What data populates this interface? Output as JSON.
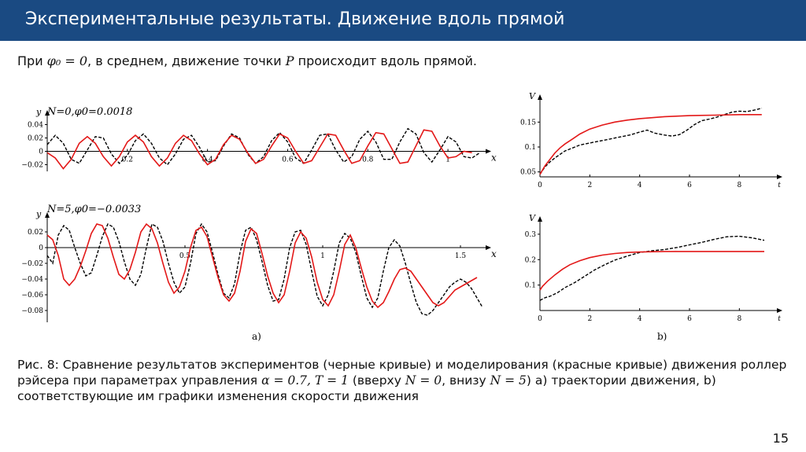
{
  "header": {
    "title": "Экспериментальные результаты. Движение вдоль прямой"
  },
  "intro": {
    "text_before": "При ",
    "formula": "φ₀ = 0",
    "text_middle": ", в среднем, движение точки ",
    "point": "P",
    "text_after": " происходит вдоль прямой."
  },
  "figure": {
    "label_a": "a)",
    "label_b": "b)",
    "plot_top_left_title": "N=0,φ0=0.0018",
    "plot_bottom_left_title": "N=5,φ0=−0.0033"
  },
  "caption": {
    "part1": "Рис. 8: Сравнение результатов экспериментов (черные кривые) и моделирования (красные кривые) движения роллер рэйсера при параметрах управления ",
    "math1": "α = 0.7, T = 1",
    "part2": " (вверху ",
    "math2": "N = 0",
    "part3": ", внизу ",
    "math3": "N = 5",
    "part4": ") a) траектории движения, b) соответствующие им графики изменения скорости движения"
  },
  "page_number": "15",
  "colors": {
    "header_bg": "#1a4a82",
    "experiment": "#000000",
    "simulation": "#e31818"
  },
  "chart_data": [
    {
      "type": "line",
      "panel": "top-left",
      "title": "N=0,φ0=0.0018",
      "xlabel": "x",
      "ylabel": "y",
      "xlim": [
        0,
        1.1
      ],
      "ylim": [
        -0.03,
        0.05
      ],
      "xticks": [
        "0.2",
        "0.4",
        "0.6",
        "0.8",
        "1"
      ],
      "xtick_values": [
        0.2,
        0.4,
        0.6,
        0.8,
        1.0
      ],
      "yticks": [
        "0.04",
        "0.02",
        "0",
        "−0.02"
      ],
      "ytick_values": [
        0.04,
        0.02,
        0,
        -0.02
      ],
      "series": [
        {
          "color": "#000000",
          "style": "dashed",
          "x": [
            0.0,
            0.02,
            0.04,
            0.06,
            0.08,
            0.1,
            0.12,
            0.14,
            0.16,
            0.18,
            0.2,
            0.22,
            0.24,
            0.26,
            0.28,
            0.3,
            0.32,
            0.34,
            0.36,
            0.38,
            0.4,
            0.42,
            0.44,
            0.46,
            0.48,
            0.5,
            0.52,
            0.54,
            0.56,
            0.58,
            0.6,
            0.62,
            0.64,
            0.66,
            0.68,
            0.7,
            0.72,
            0.74,
            0.76,
            0.78,
            0.8,
            0.82,
            0.84,
            0.86,
            0.88,
            0.9,
            0.92,
            0.94,
            0.96,
            0.98,
            1.0,
            1.02,
            1.04,
            1.06,
            1.08
          ],
          "y": [
            0.01,
            0.024,
            0.012,
            -0.012,
            -0.018,
            0.002,
            0.022,
            0.02,
            -0.004,
            -0.018,
            -0.006,
            0.016,
            0.026,
            0.012,
            -0.01,
            -0.02,
            -0.004,
            0.018,
            0.024,
            0.006,
            -0.016,
            -0.014,
            0.008,
            0.026,
            0.02,
            -0.004,
            -0.018,
            -0.008,
            0.016,
            0.028,
            0.014,
            -0.01,
            -0.018,
            0.002,
            0.024,
            0.026,
            0.002,
            -0.016,
            -0.008,
            0.018,
            0.03,
            0.014,
            -0.012,
            -0.012,
            0.014,
            0.034,
            0.026,
            -0.002,
            -0.016,
            0.002,
            0.022,
            0.014,
            -0.008,
            -0.01,
            -0.002
          ]
        },
        {
          "color": "#e31818",
          "style": "solid",
          "x": [
            0.0,
            0.02,
            0.04,
            0.06,
            0.08,
            0.1,
            0.12,
            0.14,
            0.16,
            0.18,
            0.2,
            0.22,
            0.24,
            0.26,
            0.28,
            0.3,
            0.32,
            0.34,
            0.36,
            0.38,
            0.4,
            0.42,
            0.44,
            0.46,
            0.48,
            0.5,
            0.52,
            0.54,
            0.56,
            0.58,
            0.6,
            0.62,
            0.64,
            0.66,
            0.68,
            0.7,
            0.72,
            0.74,
            0.76,
            0.78,
            0.8,
            0.82,
            0.84,
            0.86,
            0.88,
            0.9,
            0.92,
            0.94,
            0.96,
            0.98,
            1.0,
            1.02,
            1.04,
            1.06
          ],
          "y": [
            -0.002,
            -0.01,
            -0.026,
            -0.012,
            0.012,
            0.022,
            0.012,
            -0.008,
            -0.022,
            -0.008,
            0.014,
            0.024,
            0.014,
            -0.008,
            -0.022,
            -0.01,
            0.012,
            0.024,
            0.016,
            -0.004,
            -0.02,
            -0.012,
            0.01,
            0.024,
            0.018,
            -0.002,
            -0.018,
            -0.012,
            0.008,
            0.026,
            0.02,
            0.0,
            -0.018,
            -0.014,
            0.006,
            0.026,
            0.024,
            0.002,
            -0.018,
            -0.014,
            0.008,
            0.028,
            0.026,
            0.004,
            -0.018,
            -0.016,
            0.008,
            0.032,
            0.03,
            0.008,
            -0.01,
            -0.008,
            0.0,
            -0.002
          ]
        }
      ]
    },
    {
      "type": "line",
      "panel": "bottom-left",
      "title": "N=5,φ0=−0.0033",
      "xlabel": "x",
      "ylabel": "y",
      "xlim": [
        0,
        1.6
      ],
      "ylim": [
        -0.095,
        0.035
      ],
      "xticks": [
        "0.5",
        "1",
        "1.5"
      ],
      "xtick_values": [
        0.5,
        1.0,
        1.5
      ],
      "yticks": [
        "0.02",
        "0",
        "−0.02",
        "−0.04",
        "−0.06",
        "−0.08"
      ],
      "ytick_values": [
        0.02,
        0,
        -0.02,
        -0.04,
        -0.06,
        -0.08
      ],
      "series": [
        {
          "color": "#000000",
          "style": "dashed",
          "x": [
            0.0,
            0.02,
            0.04,
            0.06,
            0.08,
            0.1,
            0.12,
            0.14,
            0.16,
            0.18,
            0.2,
            0.22,
            0.24,
            0.26,
            0.28,
            0.3,
            0.32,
            0.34,
            0.36,
            0.38,
            0.4,
            0.42,
            0.44,
            0.46,
            0.48,
            0.5,
            0.52,
            0.54,
            0.56,
            0.58,
            0.6,
            0.62,
            0.64,
            0.66,
            0.68,
            0.7,
            0.72,
            0.74,
            0.76,
            0.78,
            0.8,
            0.82,
            0.84,
            0.86,
            0.88,
            0.9,
            0.92,
            0.94,
            0.96,
            0.98,
            1.0,
            1.02,
            1.04,
            1.06,
            1.08,
            1.1,
            1.12,
            1.14,
            1.16,
            1.18,
            1.2,
            1.22,
            1.24,
            1.26,
            1.28,
            1.3,
            1.32,
            1.34,
            1.36,
            1.38,
            1.4,
            1.42,
            1.44,
            1.46,
            1.48,
            1.5,
            1.52,
            1.54,
            1.56,
            1.58
          ],
          "y": [
            -0.01,
            -0.02,
            0.016,
            0.028,
            0.022,
            0.0,
            -0.02,
            -0.036,
            -0.032,
            -0.01,
            0.014,
            0.03,
            0.026,
            0.008,
            -0.018,
            -0.04,
            -0.048,
            -0.034,
            0.0,
            0.03,
            0.026,
            0.008,
            -0.02,
            -0.044,
            -0.058,
            -0.05,
            -0.02,
            0.018,
            0.03,
            0.02,
            -0.006,
            -0.034,
            -0.058,
            -0.064,
            -0.046,
            -0.006,
            0.022,
            0.026,
            0.01,
            -0.018,
            -0.048,
            -0.068,
            -0.066,
            -0.04,
            0.0,
            0.02,
            0.022,
            0.004,
            -0.03,
            -0.062,
            -0.074,
            -0.06,
            -0.03,
            0.006,
            0.018,
            0.012,
            -0.006,
            -0.036,
            -0.064,
            -0.076,
            -0.064,
            -0.03,
            0.0,
            0.01,
            0.002,
            -0.02,
            -0.046,
            -0.07,
            -0.084,
            -0.086,
            -0.08,
            -0.07,
            -0.06,
            -0.05,
            -0.044,
            -0.04,
            -0.044,
            -0.052,
            -0.064,
            -0.076
          ]
        },
        {
          "color": "#e31818",
          "style": "solid",
          "x": [
            0.0,
            0.02,
            0.04,
            0.06,
            0.08,
            0.1,
            0.12,
            0.14,
            0.16,
            0.18,
            0.2,
            0.22,
            0.24,
            0.26,
            0.28,
            0.3,
            0.32,
            0.34,
            0.36,
            0.38,
            0.4,
            0.42,
            0.44,
            0.46,
            0.48,
            0.5,
            0.52,
            0.54,
            0.56,
            0.58,
            0.6,
            0.62,
            0.64,
            0.66,
            0.68,
            0.7,
            0.72,
            0.74,
            0.76,
            0.78,
            0.8,
            0.82,
            0.84,
            0.86,
            0.88,
            0.9,
            0.92,
            0.94,
            0.96,
            0.98,
            1.0,
            1.02,
            1.04,
            1.06,
            1.08,
            1.1,
            1.12,
            1.14,
            1.16,
            1.18,
            1.2,
            1.22,
            1.24,
            1.26,
            1.28,
            1.3,
            1.32,
            1.34,
            1.36,
            1.38,
            1.4,
            1.42,
            1.44,
            1.46,
            1.48,
            1.5,
            1.52,
            1.54,
            1.56
          ],
          "y": [
            0.016,
            0.01,
            -0.01,
            -0.04,
            -0.048,
            -0.04,
            -0.024,
            -0.004,
            0.018,
            0.03,
            0.028,
            0.012,
            -0.012,
            -0.034,
            -0.04,
            -0.028,
            -0.006,
            0.02,
            0.03,
            0.024,
            0.006,
            -0.02,
            -0.044,
            -0.058,
            -0.05,
            -0.03,
            0.0,
            0.022,
            0.026,
            0.014,
            -0.012,
            -0.038,
            -0.06,
            -0.068,
            -0.058,
            -0.03,
            0.008,
            0.024,
            0.018,
            -0.008,
            -0.036,
            -0.058,
            -0.07,
            -0.06,
            -0.03,
            0.006,
            0.02,
            0.012,
            -0.012,
            -0.044,
            -0.066,
            -0.074,
            -0.06,
            -0.03,
            0.004,
            0.016,
            0.0,
            -0.026,
            -0.05,
            -0.068,
            -0.076,
            -0.07,
            -0.056,
            -0.04,
            -0.028,
            -0.026,
            -0.03,
            -0.04,
            -0.05,
            -0.06,
            -0.07,
            -0.074,
            -0.07,
            -0.062,
            -0.054,
            -0.05,
            -0.046,
            -0.042,
            -0.038
          ]
        }
      ]
    },
    {
      "type": "line",
      "panel": "top-right",
      "xlabel": "t",
      "ylabel": "V",
      "xlim": [
        0,
        9.6
      ],
      "ylim": [
        0.04,
        0.19
      ],
      "xticks": [
        "0",
        "2",
        "4",
        "6",
        "8",
        "t"
      ],
      "xtick_values": [
        0,
        2,
        4,
        6,
        8
      ],
      "yticks": [
        "0.15",
        "0.1",
        "0.05"
      ],
      "ytick_values": [
        0.15,
        0.1,
        0.05
      ],
      "series": [
        {
          "color": "#000000",
          "style": "dashed",
          "x": [
            0,
            0.2,
            0.4,
            0.6,
            0.8,
            1.0,
            1.3,
            1.6,
            2.0,
            2.4,
            2.8,
            3.2,
            3.6,
            4.0,
            4.3,
            4.6,
            5.0,
            5.3,
            5.6,
            5.9,
            6.2,
            6.5,
            6.8,
            7.1,
            7.4,
            7.7,
            8.0,
            8.3,
            8.6,
            8.9
          ],
          "y": [
            0.045,
            0.06,
            0.07,
            0.078,
            0.085,
            0.092,
            0.098,
            0.104,
            0.108,
            0.112,
            0.116,
            0.12,
            0.124,
            0.13,
            0.134,
            0.128,
            0.124,
            0.122,
            0.125,
            0.134,
            0.145,
            0.153,
            0.156,
            0.16,
            0.165,
            0.17,
            0.172,
            0.171,
            0.174,
            0.178
          ]
        },
        {
          "color": "#e31818",
          "style": "solid",
          "x": [
            0,
            0.2,
            0.4,
            0.6,
            0.8,
            1.0,
            1.3,
            1.6,
            2.0,
            2.5,
            3.0,
            3.5,
            4.0,
            5.0,
            6.0,
            7.0,
            8.0,
            8.9
          ],
          "y": [
            0.045,
            0.062,
            0.075,
            0.088,
            0.098,
            0.106,
            0.116,
            0.126,
            0.136,
            0.144,
            0.15,
            0.154,
            0.157,
            0.161,
            0.163,
            0.164,
            0.165,
            0.165
          ]
        }
      ]
    },
    {
      "type": "line",
      "panel": "bottom-right",
      "xlabel": "t",
      "ylabel": "V",
      "xlim": [
        0,
        9.6
      ],
      "ylim": [
        0.0,
        0.34
      ],
      "xticks": [
        "0",
        "2",
        "4",
        "6",
        "8",
        "t"
      ],
      "xtick_values": [
        0,
        2,
        4,
        6,
        8
      ],
      "yticks": [
        "0.3",
        "0.2",
        "0.1"
      ],
      "ytick_values": [
        0.3,
        0.2,
        0.1
      ],
      "series": [
        {
          "color": "#000000",
          "style": "dashed",
          "x": [
            0,
            0.2,
            0.4,
            0.7,
            1.0,
            1.4,
            1.8,
            2.2,
            2.6,
            3.0,
            3.5,
            4.0,
            4.5,
            5.0,
            5.5,
            6.0,
            6.5,
            7.0,
            7.5,
            8.0,
            8.5,
            9.0
          ],
          "y": [
            0.04,
            0.05,
            0.056,
            0.07,
            0.09,
            0.11,
            0.135,
            0.16,
            0.18,
            0.198,
            0.214,
            0.228,
            0.235,
            0.24,
            0.248,
            0.258,
            0.268,
            0.28,
            0.29,
            0.292,
            0.286,
            0.276
          ]
        },
        {
          "color": "#e31818",
          "style": "solid",
          "x": [
            0,
            0.1,
            0.3,
            0.6,
            0.9,
            1.2,
            1.6,
            2.0,
            2.5,
            3.0,
            3.5,
            4.0,
            5.0,
            6.0,
            7.0,
            8.0,
            9.0
          ],
          "y": [
            0.08,
            0.095,
            0.115,
            0.14,
            0.162,
            0.18,
            0.196,
            0.208,
            0.218,
            0.224,
            0.228,
            0.23,
            0.232,
            0.232,
            0.232,
            0.232,
            0.232
          ]
        }
      ]
    }
  ]
}
